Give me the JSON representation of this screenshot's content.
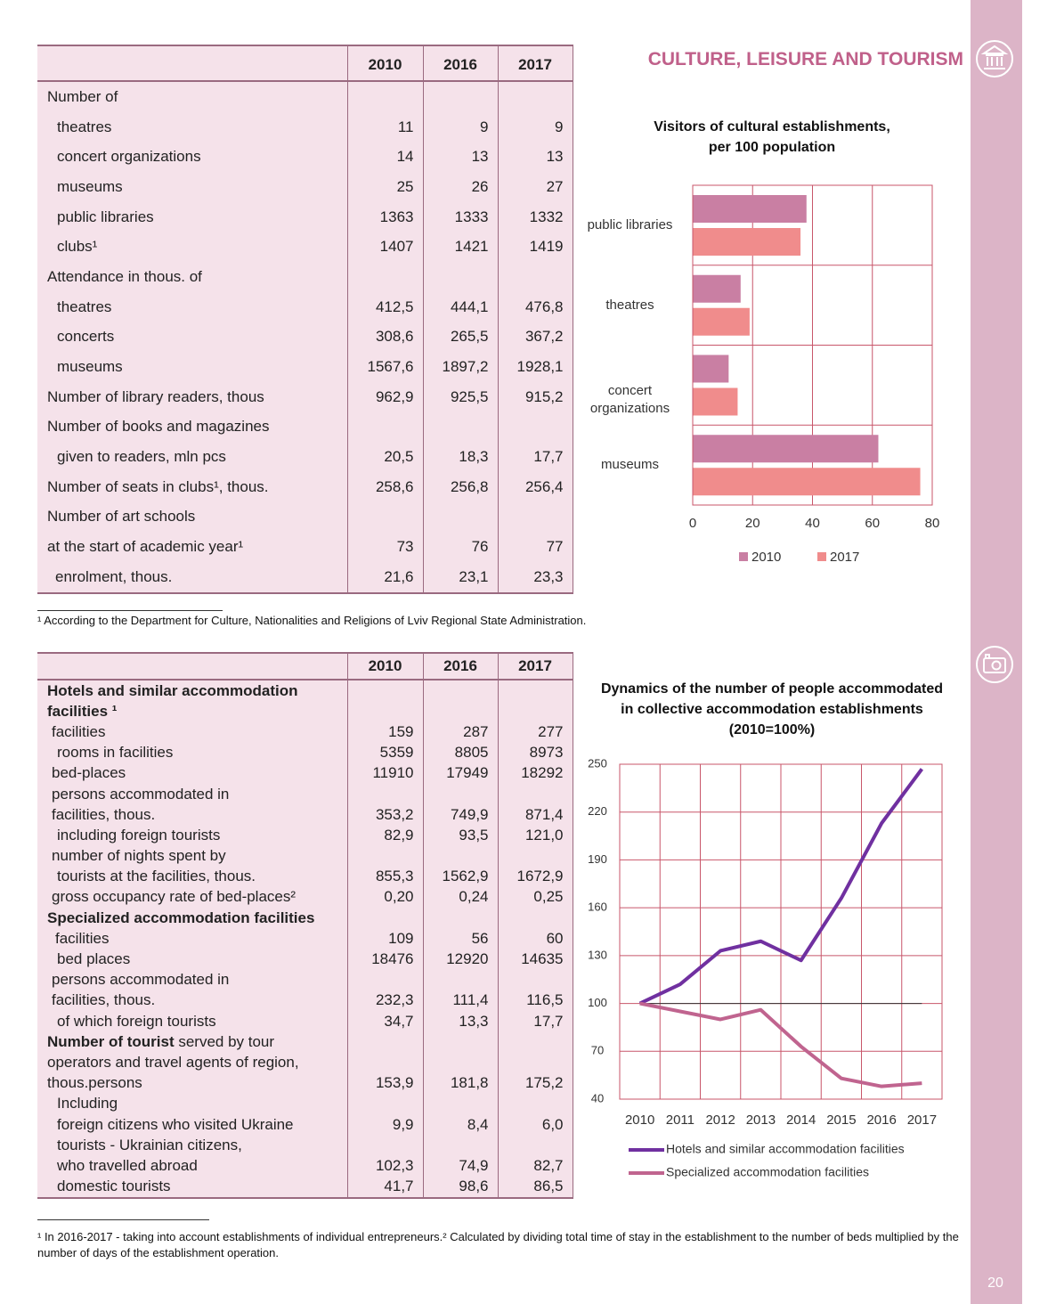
{
  "header": {
    "title": "CULTURE, LEISURE AND TOURISM",
    "page_number": "20"
  },
  "table1": {
    "columns": [
      "2010",
      "2016",
      "2017"
    ],
    "rows": [
      {
        "label": "Number of"
      },
      {
        "label": "theatres",
        "values": [
          "11",
          "9",
          "9"
        ]
      },
      {
        "label": "concert organizations",
        "values": [
          "14",
          "13",
          "13"
        ]
      },
      {
        "label": "museums",
        "values": [
          "25",
          "26",
          "27"
        ]
      },
      {
        "label": "public libraries",
        "values": [
          "1363",
          "1333",
          "1332"
        ]
      },
      {
        "label": "clubs¹",
        "values": [
          "1407",
          "1421",
          "1419"
        ]
      },
      {
        "label": "Attendance in thous. of"
      },
      {
        "label": "theatres",
        "values": [
          "412,5",
          "444,1",
          "476,8"
        ]
      },
      {
        "label": "concerts",
        "values": [
          "308,6",
          "265,5",
          "367,2"
        ]
      },
      {
        "label": "museums",
        "values": [
          "1567,6",
          "1897,2",
          "1928,1"
        ]
      },
      {
        "label": "Number of library readers, thous",
        "values": [
          "962,9",
          "925,5",
          "915,2"
        ]
      },
      {
        "label": "Number of books and magazines"
      },
      {
        "label": "given to readers, mln pcs",
        "values": [
          "20,5",
          "18,3",
          "17,7"
        ]
      },
      {
        "label": "Number of  seats in clubs¹, thous.",
        "values": [
          "258,6",
          "256,8",
          "256,4"
        ]
      },
      {
        "label": "Number of art schools"
      },
      {
        "label": "at the start of academic year¹",
        "values": [
          "73",
          "76",
          "77"
        ]
      },
      {
        "label": "enrolment, thous.",
        "values": [
          "21,6",
          "23,1",
          "23,3"
        ]
      }
    ]
  },
  "footnote1": "¹ According to the Department for Culture, Nationalities and Religions of Lviv Regional State Administration.",
  "table2": {
    "columns": [
      "2010",
      "2016",
      "2017"
    ],
    "rows": [
      {
        "label": "Hotels and similar accommodation",
        "bold": true
      },
      {
        "label": "facilities ¹",
        "bold": true
      },
      {
        "label": "facilities",
        "values": [
          "159",
          "287",
          "277"
        ]
      },
      {
        "label": "rooms in facilities",
        "values": [
          "5359",
          "8805",
          "8973"
        ]
      },
      {
        "label": "bed-places",
        "values": [
          "11910",
          "17949",
          "18292"
        ]
      },
      {
        "label": "persons accommodated in"
      },
      {
        "label": "facilities, thous.",
        "values": [
          "353,2",
          "749,9",
          "871,4"
        ]
      },
      {
        "label": "including foreign tourists",
        "values": [
          "82,9",
          "93,5",
          "121,0"
        ]
      },
      {
        "label": "number of nights spent by"
      },
      {
        "label": "tourists at the facilities, thous.",
        "values": [
          "855,3",
          "1562,9",
          "1672,9"
        ]
      },
      {
        "label": "gross occupancy rate of bed-places²",
        "values": [
          "0,20",
          "0,24",
          "0,25"
        ]
      },
      {
        "label": "Specialized accommodation facilities",
        "bold": true
      },
      {
        "label": "facilities",
        "values": [
          "109",
          "56",
          "60"
        ]
      },
      {
        "label": "bed places",
        "values": [
          "18476",
          "12920",
          "14635"
        ]
      },
      {
        "label": "persons accommodated in"
      },
      {
        "label": "facilities, thous.",
        "values": [
          "232,3",
          "111,4",
          "116,5"
        ]
      },
      {
        "label": "of which foreign tourists",
        "values": [
          "34,7",
          "13,3",
          "17,7"
        ]
      },
      {
        "label_bold": "Number of tourist",
        "label": " served by tour"
      },
      {
        "label": "operators and travel agents of region,"
      },
      {
        "label": "thous.persons",
        "values": [
          "153,9",
          "181,8",
          "175,2"
        ]
      },
      {
        "label": "Including"
      },
      {
        "label": "foreign citizens who visited Ukraine",
        "values": [
          "9,9",
          "8,4",
          "6,0"
        ]
      },
      {
        "label": "tourists - Ukrainian citizens,"
      },
      {
        "label": "who travelled abroad",
        "values": [
          "102,3",
          "74,9",
          "82,7"
        ]
      },
      {
        "label": "domestic tourists",
        "values": [
          "41,7",
          "98,6",
          "86,5"
        ]
      }
    ]
  },
  "footnote2": [
    "¹ In 2016-2017 - taking into account establishments of individual entrepreneurs.",
    "² Calculated by dividing total time of stay in the establishment to the number of beds multiplied by the number of days of the establishment operation."
  ],
  "chart_data": [
    {
      "type": "bar",
      "title": [
        "Visitors of cultural establishments,",
        "per 100 population"
      ],
      "categories": [
        "public libraries",
        "theatres",
        "concert organizations",
        "museums"
      ],
      "series": [
        {
          "name": "2010",
          "color": "#c97fa3",
          "values": [
            38,
            16,
            12,
            62
          ]
        },
        {
          "name": "2017",
          "color": "#f08c8c",
          "values": [
            36,
            19,
            15,
            76
          ]
        }
      ],
      "xlim": [
        0,
        80
      ],
      "xticks": [
        0,
        20,
        40,
        60,
        80
      ],
      "grid": true
    },
    {
      "type": "line",
      "title": [
        "Dynamics of the number of people accommodated",
        "in collective accommodation establishments",
        "(2010=100%)"
      ],
      "categories": [
        "2010",
        "2011",
        "2012",
        "2013",
        "2014",
        "2015",
        "2016",
        "2017"
      ],
      "series": [
        {
          "name": "Hotels and similar accommodation facilities",
          "color": "#7030a0",
          "values": [
            100,
            112,
            133,
            139,
            127,
            166,
            213,
            247
          ]
        },
        {
          "name": "Specialized accommodation facilities",
          "color": "#c0648f",
          "values": [
            100,
            95,
            90,
            96,
            73,
            53,
            48,
            50
          ]
        }
      ],
      "baseline": 100,
      "ylim": [
        40,
        250
      ],
      "yticks": [
        40,
        70,
        100,
        130,
        160,
        190,
        220,
        250
      ],
      "grid": true
    }
  ]
}
